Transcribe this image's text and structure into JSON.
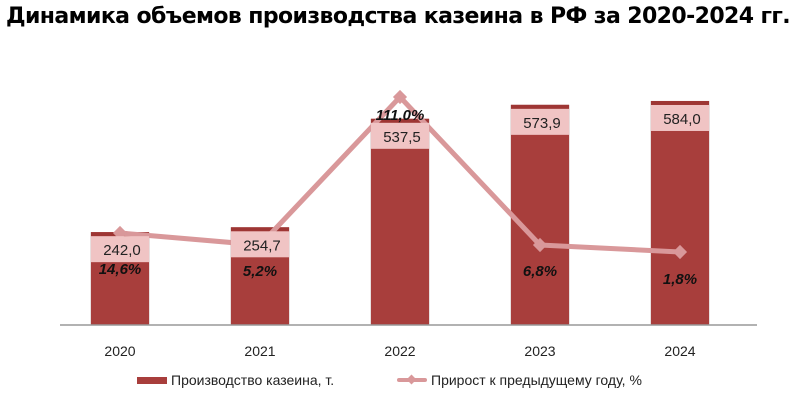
{
  "title": "Динамика объемов производства казеина в РФ за 2020-2024 гг.",
  "colors": {
    "bar": "#a83e3c",
    "bar_top": "#9e3634",
    "label_box": "#f0c4c4",
    "line": "#d9989a",
    "axis": "#999999"
  },
  "legend": {
    "bar_label": "Производство казеина, т.",
    "line_label": "Прирост к предыдущему году, %"
  },
  "chart_data": {
    "type": "bar+line",
    "title": "Динамика объемов производства казеина в РФ за 2020-2024 гг.",
    "categories": [
      "2020",
      "2021",
      "2022",
      "2023",
      "2024"
    ],
    "series": [
      {
        "name": "Производство казеина, т.",
        "type": "bar",
        "values": [
          242.0,
          254.7,
          537.5,
          573.9,
          584.0
        ],
        "labels": [
          "242,0",
          "254,7",
          "537,5",
          "573,9",
          "584,0"
        ]
      },
      {
        "name": "Прирост к предыдущему году, %",
        "type": "line",
        "values": [
          14.6,
          5.2,
          111.0,
          6.8,
          1.8
        ],
        "labels": [
          "14,6%",
          "5,2%",
          "111,0%",
          "6,8%",
          "1,8%"
        ]
      }
    ],
    "xlabel": "",
    "ylabel": "",
    "grid": false,
    "legend_position": "bottom"
  }
}
